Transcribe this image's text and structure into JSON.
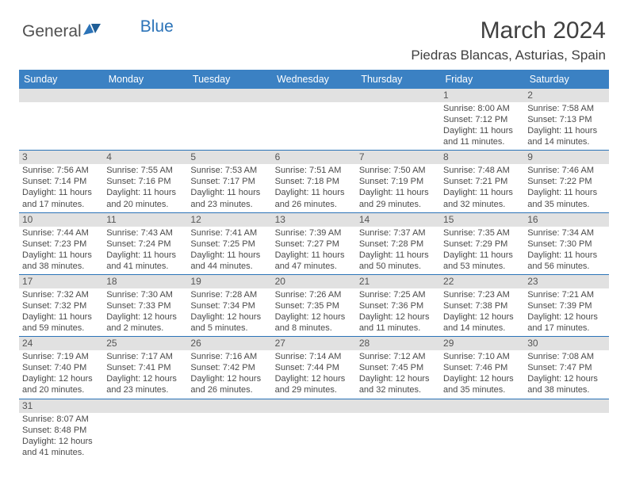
{
  "brand": {
    "part1": "General",
    "part2": "Blue",
    "part1_color": "#505050",
    "part2_color": "#2b73b8"
  },
  "title": "March 2024",
  "location": "Piedras Blancas, Asturias, Spain",
  "colors": {
    "header_bg": "#3b81c3",
    "header_fg": "#ffffff",
    "rule": "#2b73b8",
    "daynum_bg": "#e1e1e1",
    "text": "#4a4a4a"
  },
  "daynames": [
    "Sunday",
    "Monday",
    "Tuesday",
    "Wednesday",
    "Thursday",
    "Friday",
    "Saturday"
  ],
  "weeks": [
    [
      null,
      null,
      null,
      null,
      null,
      {
        "n": "1",
        "sr": "8:00 AM",
        "ss": "7:12 PM",
        "dl": "11 hours and 11 minutes."
      },
      {
        "n": "2",
        "sr": "7:58 AM",
        "ss": "7:13 PM",
        "dl": "11 hours and 14 minutes."
      }
    ],
    [
      {
        "n": "3",
        "sr": "7:56 AM",
        "ss": "7:14 PM",
        "dl": "11 hours and 17 minutes."
      },
      {
        "n": "4",
        "sr": "7:55 AM",
        "ss": "7:16 PM",
        "dl": "11 hours and 20 minutes."
      },
      {
        "n": "5",
        "sr": "7:53 AM",
        "ss": "7:17 PM",
        "dl": "11 hours and 23 minutes."
      },
      {
        "n": "6",
        "sr": "7:51 AM",
        "ss": "7:18 PM",
        "dl": "11 hours and 26 minutes."
      },
      {
        "n": "7",
        "sr": "7:50 AM",
        "ss": "7:19 PM",
        "dl": "11 hours and 29 minutes."
      },
      {
        "n": "8",
        "sr": "7:48 AM",
        "ss": "7:21 PM",
        "dl": "11 hours and 32 minutes."
      },
      {
        "n": "9",
        "sr": "7:46 AM",
        "ss": "7:22 PM",
        "dl": "11 hours and 35 minutes."
      }
    ],
    [
      {
        "n": "10",
        "sr": "7:44 AM",
        "ss": "7:23 PM",
        "dl": "11 hours and 38 minutes."
      },
      {
        "n": "11",
        "sr": "7:43 AM",
        "ss": "7:24 PM",
        "dl": "11 hours and 41 minutes."
      },
      {
        "n": "12",
        "sr": "7:41 AM",
        "ss": "7:25 PM",
        "dl": "11 hours and 44 minutes."
      },
      {
        "n": "13",
        "sr": "7:39 AM",
        "ss": "7:27 PM",
        "dl": "11 hours and 47 minutes."
      },
      {
        "n": "14",
        "sr": "7:37 AM",
        "ss": "7:28 PM",
        "dl": "11 hours and 50 minutes."
      },
      {
        "n": "15",
        "sr": "7:35 AM",
        "ss": "7:29 PM",
        "dl": "11 hours and 53 minutes."
      },
      {
        "n": "16",
        "sr": "7:34 AM",
        "ss": "7:30 PM",
        "dl": "11 hours and 56 minutes."
      }
    ],
    [
      {
        "n": "17",
        "sr": "7:32 AM",
        "ss": "7:32 PM",
        "dl": "11 hours and 59 minutes."
      },
      {
        "n": "18",
        "sr": "7:30 AM",
        "ss": "7:33 PM",
        "dl": "12 hours and 2 minutes."
      },
      {
        "n": "19",
        "sr": "7:28 AM",
        "ss": "7:34 PM",
        "dl": "12 hours and 5 minutes."
      },
      {
        "n": "20",
        "sr": "7:26 AM",
        "ss": "7:35 PM",
        "dl": "12 hours and 8 minutes."
      },
      {
        "n": "21",
        "sr": "7:25 AM",
        "ss": "7:36 PM",
        "dl": "12 hours and 11 minutes."
      },
      {
        "n": "22",
        "sr": "7:23 AM",
        "ss": "7:38 PM",
        "dl": "12 hours and 14 minutes."
      },
      {
        "n": "23",
        "sr": "7:21 AM",
        "ss": "7:39 PM",
        "dl": "12 hours and 17 minutes."
      }
    ],
    [
      {
        "n": "24",
        "sr": "7:19 AM",
        "ss": "7:40 PM",
        "dl": "12 hours and 20 minutes."
      },
      {
        "n": "25",
        "sr": "7:17 AM",
        "ss": "7:41 PM",
        "dl": "12 hours and 23 minutes."
      },
      {
        "n": "26",
        "sr": "7:16 AM",
        "ss": "7:42 PM",
        "dl": "12 hours and 26 minutes."
      },
      {
        "n": "27",
        "sr": "7:14 AM",
        "ss": "7:44 PM",
        "dl": "12 hours and 29 minutes."
      },
      {
        "n": "28",
        "sr": "7:12 AM",
        "ss": "7:45 PM",
        "dl": "12 hours and 32 minutes."
      },
      {
        "n": "29",
        "sr": "7:10 AM",
        "ss": "7:46 PM",
        "dl": "12 hours and 35 minutes."
      },
      {
        "n": "30",
        "sr": "7:08 AM",
        "ss": "7:47 PM",
        "dl": "12 hours and 38 minutes."
      }
    ],
    [
      {
        "n": "31",
        "sr": "8:07 AM",
        "ss": "8:48 PM",
        "dl": "12 hours and 41 minutes."
      },
      null,
      null,
      null,
      null,
      null,
      null
    ]
  ],
  "labels": {
    "sunrise": "Sunrise: ",
    "sunset": "Sunset: ",
    "daylight": "Daylight: "
  }
}
